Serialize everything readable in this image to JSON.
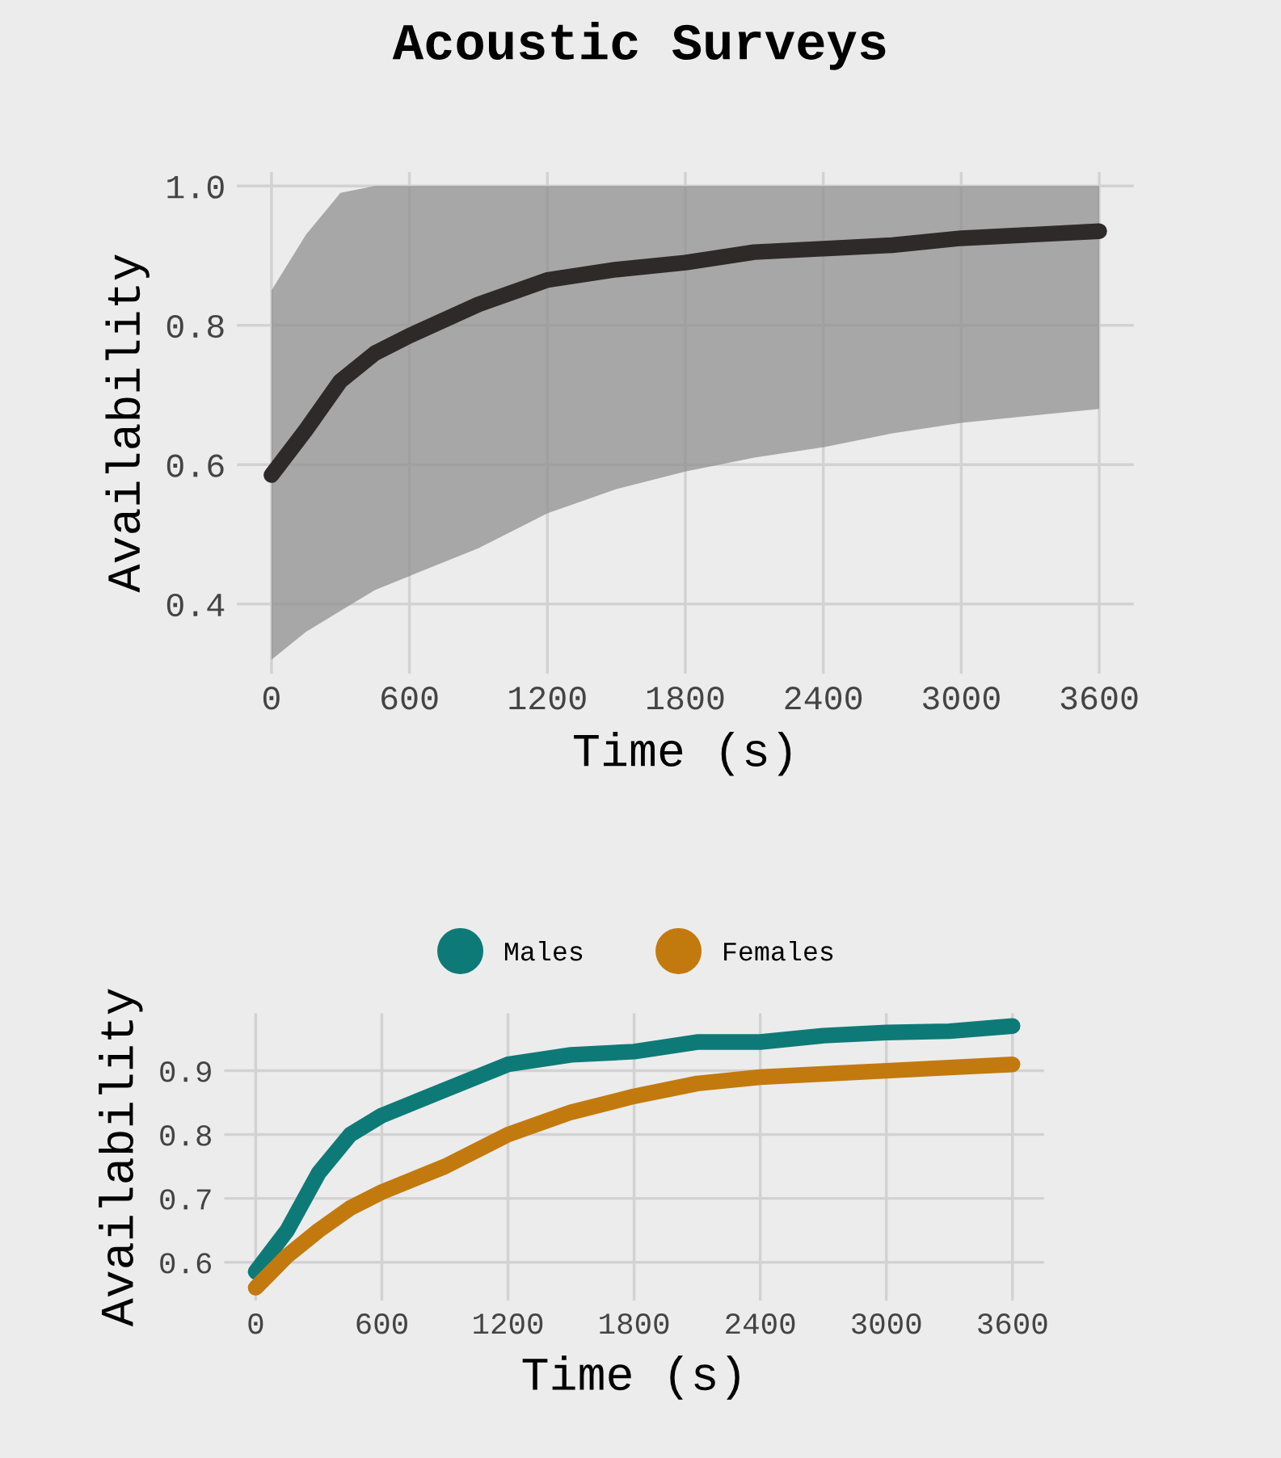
{
  "chart_data": [
    {
      "type": "line",
      "title": "Acoustic Surveys",
      "xlabel": "Time (s)",
      "ylabel": "Availability",
      "grid": true,
      "legend": false,
      "xlim": [
        -150,
        3750
      ],
      "xticks": [
        0,
        600,
        1200,
        1800,
        2400,
        3000,
        3600
      ],
      "ylim": [
        0.3,
        1.02
      ],
      "yticks": [
        0.4,
        0.6,
        0.8,
        {
          "value": 1.0,
          "label": "1.0"
        }
      ],
      "series": [
        {
          "color": "#2f2a2a",
          "x": [
            0,
            150,
            300,
            450,
            600,
            900,
            1200,
            1500,
            1800,
            2100,
            2400,
            2700,
            3000,
            3300,
            3600
          ],
          "values": [
            0.585,
            0.65,
            0.72,
            0.76,
            0.785,
            0.83,
            0.865,
            0.88,
            0.89,
            0.905,
            0.91,
            0.915,
            0.925,
            0.93,
            0.935
          ],
          "lower": [
            0.32,
            0.36,
            0.39,
            0.42,
            0.44,
            0.48,
            0.53,
            0.565,
            0.59,
            0.61,
            0.625,
            0.645,
            0.66,
            0.67,
            0.68
          ],
          "upper": [
            0.85,
            0.93,
            0.99,
            1.0,
            1.0,
            1.0,
            1.0,
            1.0,
            1.0,
            1.0,
            1.0,
            1.0,
            1.0,
            1.0,
            1.0
          ]
        }
      ]
    },
    {
      "type": "line",
      "xlabel": "Time (s)",
      "ylabel": "Availability",
      "grid": true,
      "legend": "top",
      "xlim": [
        -150,
        3750
      ],
      "xticks": [
        0,
        600,
        1200,
        1800,
        2400,
        3000,
        3600
      ],
      "ylim": [
        0.54,
        0.99
      ],
      "yticks": [
        0.6,
        0.7,
        0.8,
        0.9
      ],
      "series": [
        {
          "name": "Males",
          "color": "#0e7a78",
          "x": [
            0,
            150,
            300,
            450,
            600,
            900,
            1200,
            1500,
            1800,
            2100,
            2400,
            2700,
            3000,
            3300,
            3600
          ],
          "values": [
            0.585,
            0.65,
            0.74,
            0.8,
            0.83,
            0.87,
            0.91,
            0.925,
            0.93,
            0.945,
            0.945,
            0.955,
            0.96,
            0.962,
            0.97
          ]
        },
        {
          "name": "Females",
          "color": "#c27a0e",
          "x": [
            0,
            150,
            300,
            450,
            600,
            900,
            1200,
            1500,
            1800,
            2100,
            2400,
            2700,
            3000,
            3300,
            3600
          ],
          "values": [
            0.56,
            0.61,
            0.65,
            0.685,
            0.71,
            0.75,
            0.8,
            0.835,
            0.86,
            0.88,
            0.89,
            0.895,
            0.9,
            0.905,
            0.91
          ]
        }
      ]
    }
  ]
}
